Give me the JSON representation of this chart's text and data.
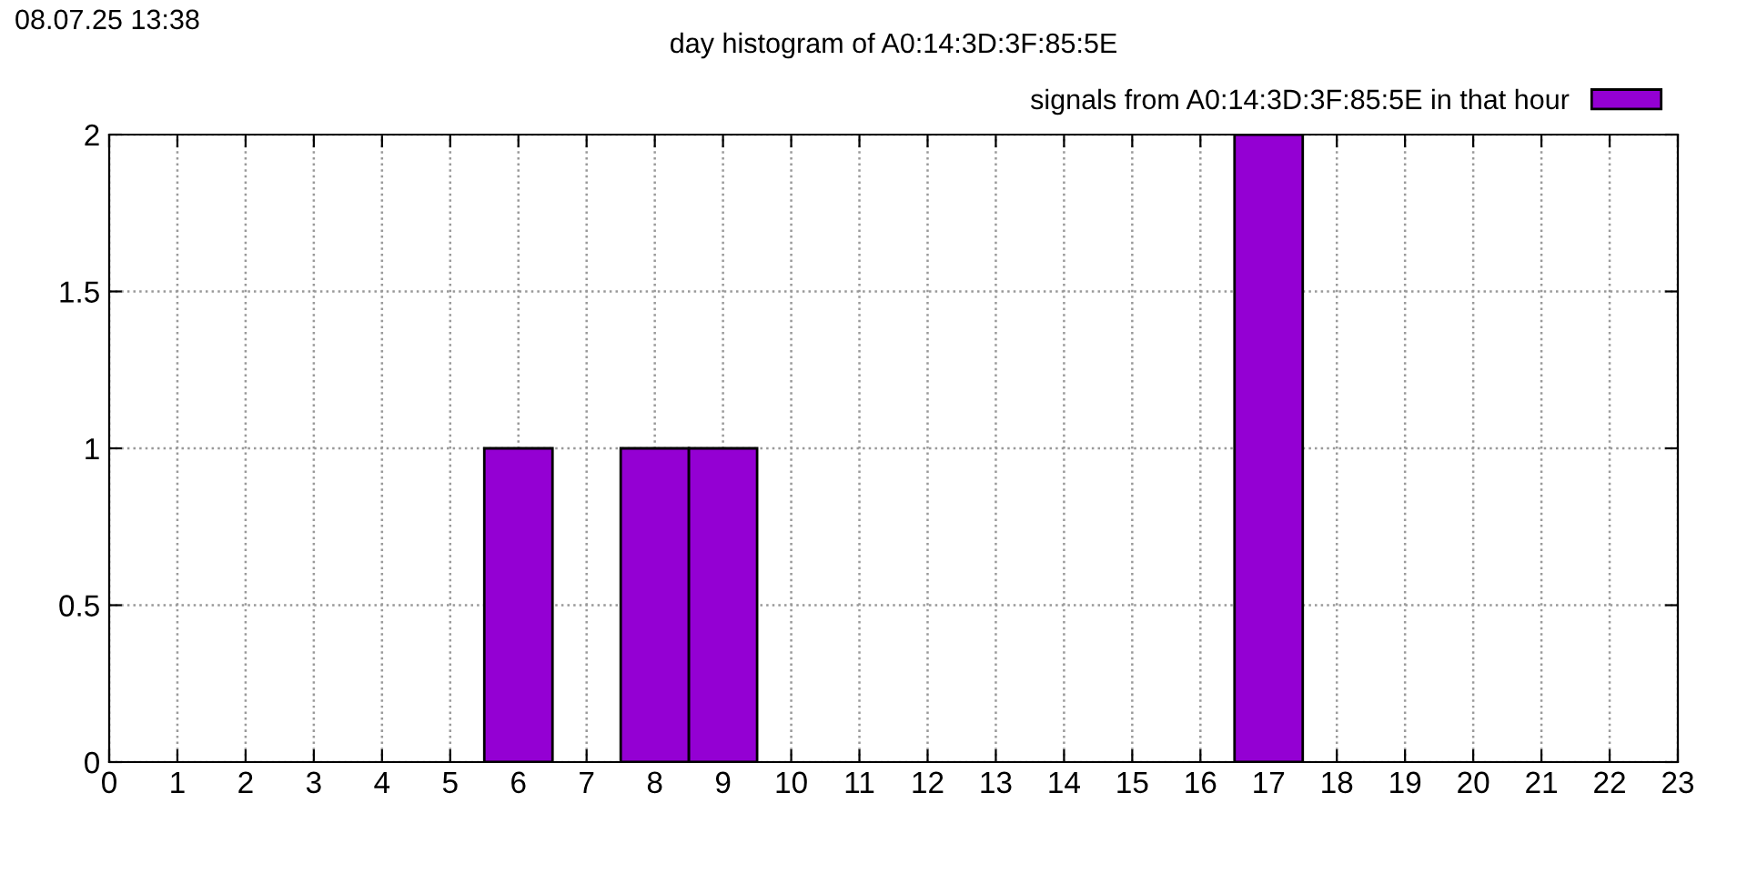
{
  "chart_data": {
    "type": "bar",
    "title": "day histogram of A0:14:3D:3F:85:5E",
    "annotations": [
      "08.07.25 13:38"
    ],
    "x": [
      6,
      8,
      9,
      17
    ],
    "series": [
      {
        "name": "signals from A0:14:3D:3F:85:5E in that hour",
        "color": "#9400d3",
        "values": [
          1,
          1,
          1,
          2
        ]
      }
    ],
    "xlim": [
      0,
      23
    ],
    "xticks": [
      0,
      1,
      2,
      3,
      4,
      5,
      6,
      7,
      8,
      9,
      10,
      11,
      12,
      13,
      14,
      15,
      16,
      17,
      18,
      19,
      20,
      21,
      22,
      23
    ],
    "ylim": [
      0,
      2
    ],
    "yticks": [
      0,
      0.5,
      1,
      1.5,
      2
    ],
    "grid": true,
    "legend": "top right"
  }
}
